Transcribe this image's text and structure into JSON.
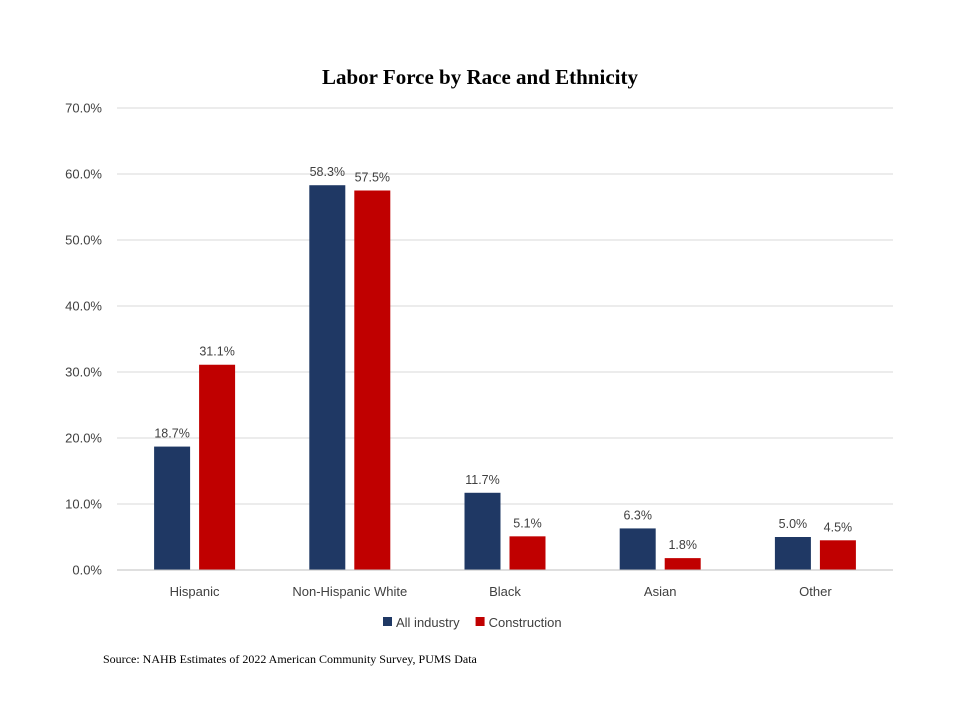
{
  "chart_data": {
    "type": "bar",
    "title": "Labor Force by Race and Ethnicity",
    "categories": [
      "Hispanic",
      "Non-Hispanic White",
      "Black",
      "Asian",
      "Other"
    ],
    "series": [
      {
        "name": "All industry",
        "color": "#1f3864",
        "values": [
          18.7,
          58.3,
          11.7,
          6.3,
          5.0
        ]
      },
      {
        "name": "Construction",
        "color": "#c00000",
        "values": [
          31.1,
          57.5,
          5.1,
          1.8,
          4.5
        ]
      }
    ],
    "ylim": [
      0,
      70
    ],
    "yticks": [
      0,
      10,
      20,
      30,
      40,
      50,
      60,
      70
    ],
    "ytick_format": "0.0%",
    "data_label_format": "0.0%",
    "grid": true,
    "legend": "bottom",
    "xlabel": "",
    "ylabel": ""
  },
  "source_note": "Source: NAHB Estimates of 2022 American Community Survey, PUMS Data"
}
